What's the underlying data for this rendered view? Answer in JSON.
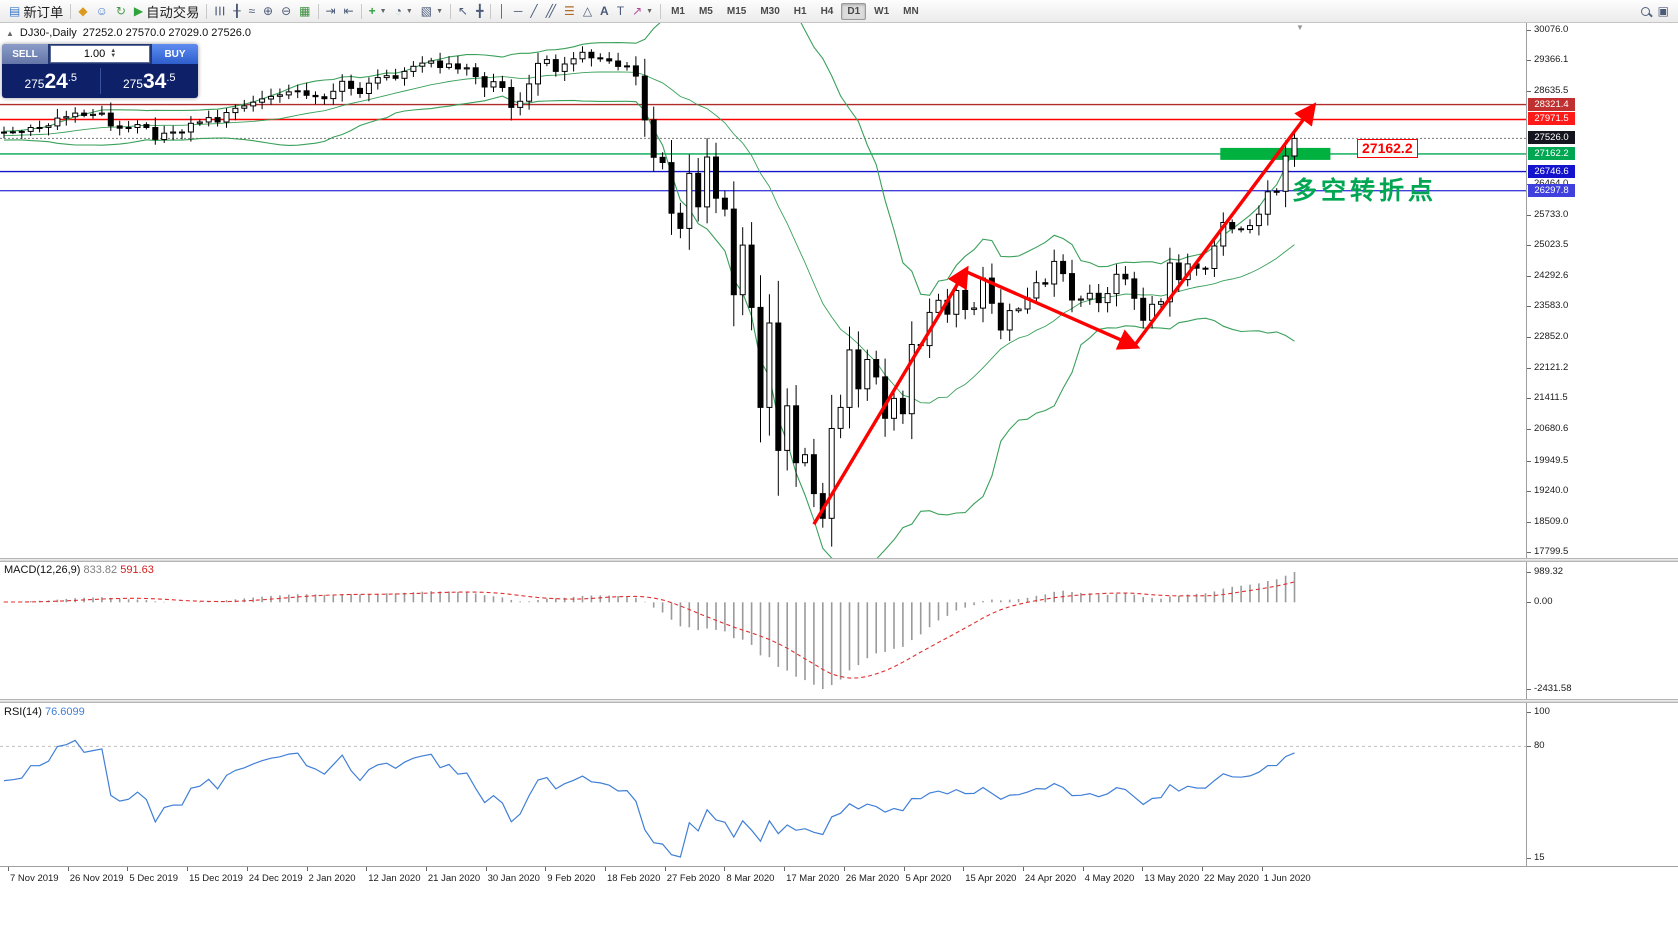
{
  "toolbar": {
    "new_order": "新订单",
    "algo_trading": "自动交易",
    "timeframes": [
      "M1",
      "M5",
      "M15",
      "M30",
      "H1",
      "H4",
      "D1",
      "W1",
      "MN"
    ],
    "active_timeframe": "D1"
  },
  "chart": {
    "symbol_period": "DJ30-,Daily",
    "ohlc_line": "27252.0 27570.0 27029.0 27526.0"
  },
  "trade_panel": {
    "sell": "SELL",
    "buy": "BUY",
    "volume": "1.00",
    "sell_price": "27524.5",
    "buy_price": "27534.5"
  },
  "annotations": {
    "turning_point_label": "27162.2",
    "turning_point_note": "多空转折点"
  },
  "macd_panel": {
    "title": "MACD(12,26,9)",
    "main_value": "833.82",
    "signal_value": "591.63",
    "ticks": [
      "989.32",
      "0.00",
      "-2431.58"
    ]
  },
  "rsi_panel": {
    "title": "RSI(14)",
    "value": "76.6099",
    "ticks": [
      "100",
      "80",
      "15"
    ]
  },
  "price_axis": {
    "ticks": [
      "30076.0",
      "29366.1",
      "28635.5",
      "26464.0",
      "25733.0",
      "25023.5",
      "24292.6",
      "23583.0",
      "22852.0",
      "22121.2",
      "21411.5",
      "20680.6",
      "19949.5",
      "19240.0",
      "18509.0",
      "17799.5"
    ],
    "badges": [
      {
        "value": "28321.4",
        "bg": "#c03030"
      },
      {
        "value": "27971.5",
        "bg": "#ff1a1a"
      },
      {
        "value": "27526.0",
        "bg": "#15151f"
      },
      {
        "value": "27162.2",
        "bg": "#00a651"
      },
      {
        "value": "26746.6",
        "bg": "#1414cc"
      },
      {
        "value": "26297.8",
        "bg": "#4040dd"
      }
    ]
  },
  "time_axis": {
    "dates": [
      "7 Nov 2019",
      "26 Nov 2019",
      "5 Dec 2019",
      "15 Dec 2019",
      "24 Dec 2019",
      "2 Jan 2020",
      "12 Jan 2020",
      "21 Jan 2020",
      "30 Jan 2020",
      "9 Feb 2020",
      "18 Feb 2020",
      "27 Feb 2020",
      "8 Mar 2020",
      "17 Mar 2020",
      "26 Mar 2020",
      "5 Apr 2020",
      "15 Apr 2020",
      "24 Apr 2020",
      "4 May 2020",
      "13 May 2020",
      "22 May 2020",
      "1 Jun 2020"
    ],
    "spacing_px": 59.7
  },
  "chart_data": {
    "type": "candlestick",
    "symbol": "DJ30",
    "period": "Daily",
    "price_range": [
      17799.5,
      30076.0
    ],
    "closes": [
      27675,
      27681,
      27691,
      27783,
      27784,
      27822,
      28005,
      28036,
      28121,
      28067,
      28094,
      28121,
      27821,
      27766,
      27783,
      27851,
      27783,
      27502,
      27650,
      27677,
      27678,
      27882,
      27912,
      28015,
      27911,
      28135,
      28235,
      28290,
      28377,
      28455,
      28515,
      28551,
      28621,
      28645,
      28538,
      28508,
      28462,
      28634,
      28869,
      28703,
      28584,
      28826,
      28956,
      29001,
      28940,
      29103,
      29223,
      29297,
      29348,
      29196,
      29278,
      29160,
      29186,
      28978,
      28735,
      28859,
      28723,
      28256,
      28400,
      28808,
      29291,
      29380,
      29103,
      29277,
      29398,
      29552,
      29423,
      29398,
      29348,
      29220,
      29232,
      28992,
      27961,
      27081,
      26958,
      25767,
      25409,
      26703,
      25917,
      27090,
      26121,
      25865,
      23851,
      25018,
      23553,
      21201,
      23185,
      20188,
      21237,
      19898,
      20087,
      19173,
      18592,
      20705,
      21200,
      22552,
      21637,
      22327,
      21917,
      20944,
      21413,
      21053,
      22680,
      22654,
      23434,
      23719,
      23391,
      23950,
      23504,
      23537,
      24242,
      23650,
      23019,
      23476,
      23515,
      23775,
      24134,
      24102,
      24634,
      24346,
      23724,
      23750,
      23883,
      23665,
      23876,
      24331,
      24222,
      23765,
      23248,
      23625,
      23685,
      24597,
      24207,
      24576,
      24474,
      24465,
      24995,
      25548,
      25401,
      25383,
      25475,
      25743,
      26270,
      26282,
      27111,
      27526
    ],
    "hlines": [
      {
        "price": 28321.4,
        "color": "#b02c2c",
        "style": "solid"
      },
      {
        "price": 27971.5,
        "color": "#ff0000",
        "style": "solid"
      },
      {
        "price": 27526.0,
        "color": "#777777",
        "style": "dotted"
      },
      {
        "price": 27162.2,
        "color": "#00a651",
        "style": "solid"
      },
      {
        "price": 26746.6,
        "color": "#1414cc",
        "style": "solid"
      },
      {
        "price": 26297.8,
        "color": "#4040dd",
        "style": "solid"
      }
    ],
    "trend_arrow_points": [
      {
        "i": 91,
        "p": 18450
      },
      {
        "i": 108,
        "p": 24400
      },
      {
        "i": 127,
        "p": 22650
      },
      {
        "i": 147,
        "p": 28250
      }
    ],
    "trend_arrow_color": "#ff0000",
    "highlight_bar": {
      "i1": 137,
      "i2": 148.7,
      "p": 27162.2,
      "color": "#00b140"
    },
    "bollinger": {
      "period": 20,
      "deviation": 2,
      "color": "#3aa05a"
    },
    "macd": {
      "fast": 12,
      "slow": 26,
      "signal": 9,
      "histogram_color": "#9a9a9a",
      "signal_color": "#e03030"
    },
    "rsi": {
      "period": 14,
      "level": 80,
      "line_color": "#3f7fd6",
      "axis_min": 15,
      "axis_max": 100
    }
  }
}
